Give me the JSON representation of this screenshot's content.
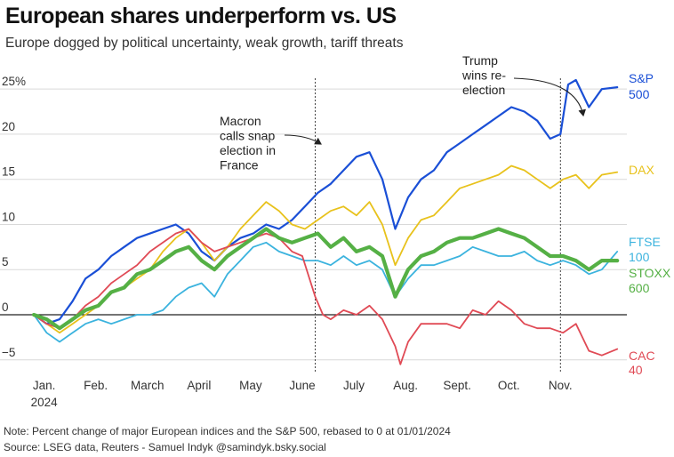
{
  "title": "European shares underperform vs. US",
  "subtitle": "Europe dogged by political uncertainty, weak growth, tariff threats",
  "note": "Note: Percent change of major European indices and the S&P 500, rebased to 0 at 01/01/2024",
  "source": "Source: LSEG data, Reuters - Samuel Indyk @samindyk.bsky.social",
  "chart_data": {
    "type": "line",
    "title": "European shares underperform vs. US",
    "subtitle": "Europe dogged by political uncertainty, weak growth, tariff threats",
    "ylim": [
      -6.5,
      26
    ],
    "xlim": [
      0,
      11.4
    ],
    "y_ticks": [
      {
        "value": 25,
        "label": "25%"
      },
      {
        "value": 20,
        "label": "20"
      },
      {
        "value": 15,
        "label": "15"
      },
      {
        "value": 10,
        "label": "10"
      },
      {
        "value": 5,
        "label": "5"
      },
      {
        "value": 0,
        "label": "0"
      },
      {
        "value": -5,
        "label": "−5"
      }
    ],
    "x_ticks": [
      {
        "value": 0.2,
        "label": "Jan.",
        "label2": "2024"
      },
      {
        "value": 1.2,
        "label": "Feb."
      },
      {
        "value": 2.2,
        "label": "March"
      },
      {
        "value": 3.2,
        "label": "April"
      },
      {
        "value": 4.2,
        "label": "May"
      },
      {
        "value": 5.2,
        "label": "June"
      },
      {
        "value": 6.2,
        "label": "July"
      },
      {
        "value": 7.2,
        "label": "Aug."
      },
      {
        "value": 8.2,
        "label": "Sept."
      },
      {
        "value": 9.2,
        "label": "Oct."
      },
      {
        "value": 10.2,
        "label": "Nov."
      }
    ],
    "grid": "horizontal",
    "annotations": [
      {
        "x": 5.45,
        "lines": [
          "Macron",
          "calls snap",
          "election in",
          "France"
        ]
      },
      {
        "x": 10.2,
        "lines": [
          "Trump",
          "wins re-",
          "election"
        ]
      }
    ],
    "series": [
      {
        "name": "S&P 500",
        "label_lines": [
          "S&P",
          "500"
        ],
        "color": "#1a4fd6",
        "width": 2.2,
        "x": [
          0.0,
          0.25,
          0.5,
          0.75,
          1.0,
          1.25,
          1.5,
          1.75,
          2.0,
          2.25,
          2.5,
          2.75,
          3.0,
          3.25,
          3.5,
          3.75,
          4.0,
          4.25,
          4.5,
          4.75,
          5.0,
          5.25,
          5.5,
          5.75,
          6.0,
          6.25,
          6.5,
          6.75,
          7.0,
          7.25,
          7.5,
          7.75,
          8.0,
          8.25,
          8.5,
          8.75,
          9.0,
          9.25,
          9.5,
          9.75,
          10.0,
          10.2,
          10.35,
          10.5,
          10.75,
          11.0,
          11.3
        ],
        "y": [
          0,
          -1,
          -0.5,
          1.5,
          4,
          5,
          6.5,
          7.5,
          8.5,
          9,
          9.5,
          10,
          9,
          7,
          6,
          7.5,
          8.5,
          9,
          10,
          9.5,
          10.5,
          12,
          13.5,
          14.5,
          16,
          17.5,
          18,
          15,
          9.5,
          13,
          15,
          16,
          18,
          19,
          20,
          21,
          22,
          23,
          22.5,
          21.5,
          19.5,
          20,
          25.5,
          26,
          23,
          25,
          25.2
        ]
      },
      {
        "name": "DAX",
        "label_lines": [
          "DAX"
        ],
        "color": "#e8c21c",
        "width": 1.8,
        "x": [
          0.0,
          0.25,
          0.5,
          0.75,
          1.0,
          1.25,
          1.5,
          1.75,
          2.0,
          2.25,
          2.5,
          2.75,
          3.0,
          3.25,
          3.5,
          3.75,
          4.0,
          4.25,
          4.5,
          4.75,
          5.0,
          5.25,
          5.5,
          5.75,
          6.0,
          6.25,
          6.5,
          6.75,
          7.0,
          7.25,
          7.5,
          7.75,
          8.0,
          8.25,
          8.5,
          8.75,
          9.0,
          9.25,
          9.5,
          9.75,
          10.0,
          10.25,
          10.5,
          10.75,
          11.0,
          11.3
        ],
        "y": [
          0,
          -1,
          -2,
          -1,
          0,
          1,
          2.5,
          3,
          4,
          5,
          7,
          8.5,
          9.5,
          8,
          6,
          7.5,
          9.5,
          11,
          12.5,
          11.5,
          10,
          9.5,
          10.5,
          11.5,
          12,
          11,
          12.5,
          10,
          5.5,
          8.5,
          10.5,
          11,
          12.5,
          14,
          14.5,
          15,
          15.5,
          16.5,
          16,
          15,
          14,
          15,
          15.5,
          14,
          15.5,
          15.8
        ]
      },
      {
        "name": "FTSE 100",
        "label_lines": [
          "FTSE",
          "100"
        ],
        "color": "#3bb3de",
        "width": 1.8,
        "x": [
          0.0,
          0.25,
          0.5,
          0.75,
          1.0,
          1.25,
          1.5,
          1.75,
          2.0,
          2.25,
          2.5,
          2.75,
          3.0,
          3.25,
          3.5,
          3.75,
          4.0,
          4.25,
          4.5,
          4.75,
          5.0,
          5.25,
          5.5,
          5.75,
          6.0,
          6.25,
          6.5,
          6.75,
          7.0,
          7.25,
          7.5,
          7.75,
          8.0,
          8.25,
          8.5,
          8.75,
          9.0,
          9.25,
          9.5,
          9.75,
          10.0,
          10.25,
          10.5,
          10.75,
          11.0,
          11.3
        ],
        "y": [
          0,
          -2,
          -3,
          -2,
          -1,
          -0.5,
          -1,
          -0.5,
          0,
          0,
          0.5,
          2,
          3,
          3.5,
          2,
          4.5,
          6,
          7.5,
          8,
          7,
          6.5,
          6,
          6,
          5.5,
          6.5,
          5.5,
          6,
          5,
          2,
          4,
          5.5,
          5.5,
          6,
          6.5,
          7.5,
          7,
          6.5,
          6.5,
          7,
          6,
          5.5,
          6,
          5.5,
          4.5,
          5,
          7
        ]
      },
      {
        "name": "CAC 40",
        "label_lines": [
          "CAC",
          "40"
        ],
        "color": "#e04a55",
        "width": 1.8,
        "x": [
          0.0,
          0.25,
          0.5,
          0.75,
          1.0,
          1.25,
          1.5,
          1.75,
          2.0,
          2.25,
          2.5,
          2.75,
          3.0,
          3.25,
          3.5,
          3.75,
          4.0,
          4.25,
          4.5,
          4.75,
          5.0,
          5.2,
          5.45,
          5.6,
          5.75,
          6.0,
          6.25,
          6.5,
          6.75,
          7.0,
          7.1,
          7.25,
          7.5,
          7.75,
          8.0,
          8.25,
          8.5,
          8.75,
          9.0,
          9.25,
          9.5,
          9.75,
          10.0,
          10.25,
          10.5,
          10.75,
          11.0,
          11.3
        ],
        "y": [
          0,
          -1,
          -1.5,
          -0.5,
          1,
          2,
          3.5,
          4.5,
          5.5,
          7,
          8,
          9,
          9.5,
          8,
          7,
          7.5,
          8,
          8.5,
          9,
          8.5,
          7,
          6.5,
          2,
          0,
          -0.5,
          0.5,
          0,
          1,
          -0.5,
          -3.5,
          -5.5,
          -3,
          -1,
          -1,
          -1,
          -1.5,
          0.5,
          0,
          1.5,
          0.5,
          -1,
          -1.5,
          -1.5,
          -2,
          -1,
          -4,
          -4.5,
          -3.8
        ]
      },
      {
        "name": "STOXX 600",
        "label_lines": [
          "STOXX",
          "600"
        ],
        "color": "#55b045",
        "width": 4.2,
        "x": [
          0.0,
          0.25,
          0.5,
          0.75,
          1.0,
          1.25,
          1.5,
          1.75,
          2.0,
          2.25,
          2.5,
          2.75,
          3.0,
          3.25,
          3.5,
          3.75,
          4.0,
          4.25,
          4.5,
          4.75,
          5.0,
          5.25,
          5.5,
          5.75,
          6.0,
          6.25,
          6.5,
          6.75,
          7.0,
          7.25,
          7.5,
          7.75,
          8.0,
          8.25,
          8.5,
          8.75,
          9.0,
          9.25,
          9.5,
          9.75,
          10.0,
          10.25,
          10.5,
          10.75,
          11.0,
          11.3
        ],
        "y": [
          0,
          -0.5,
          -1.5,
          -0.5,
          0.5,
          1,
          2.5,
          3,
          4.5,
          5,
          6,
          7,
          7.5,
          6,
          5,
          6.5,
          7.5,
          8.5,
          9.5,
          8.5,
          8,
          8.5,
          9,
          7.5,
          8.5,
          7,
          7.5,
          6.5,
          2,
          5,
          6.5,
          7,
          8,
          8.5,
          8.5,
          9,
          9.5,
          9,
          8.5,
          7.5,
          6.5,
          6.5,
          6,
          5,
          6,
          6
        ]
      }
    ]
  }
}
